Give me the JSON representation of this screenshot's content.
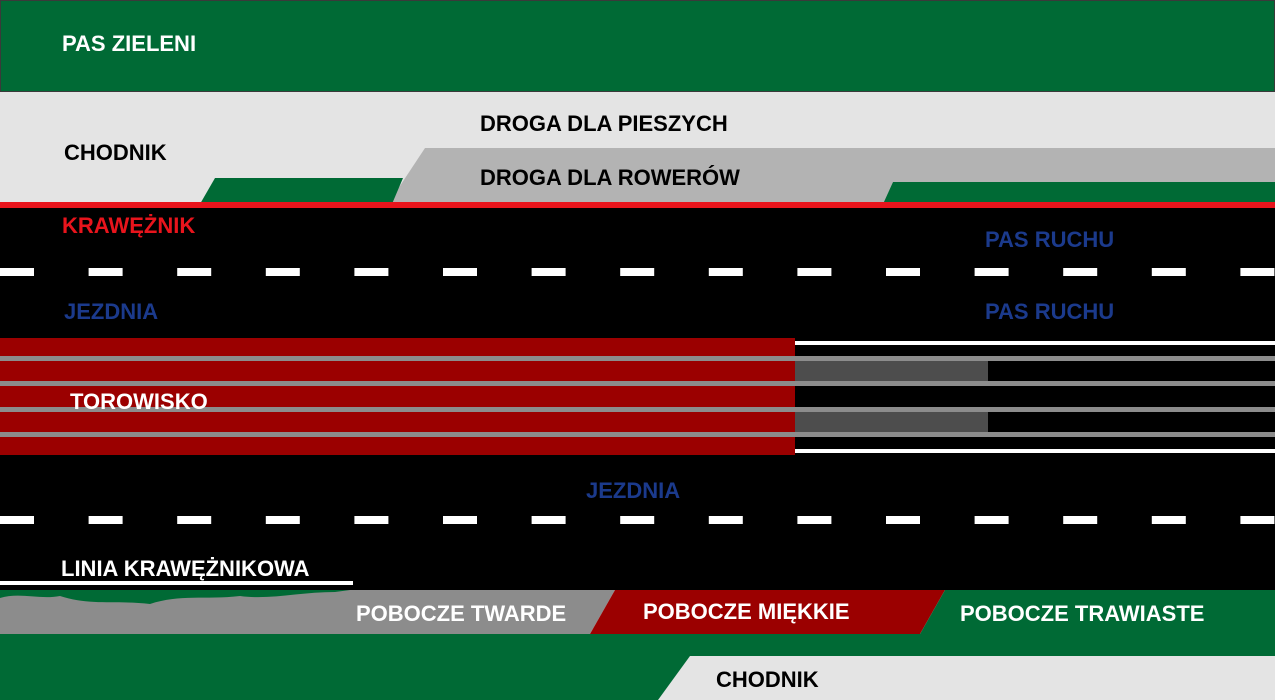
{
  "labels": {
    "green_belt": "PAS ZIELENI",
    "sidewalk_top": "CHODNIK",
    "pedestrian_path": "DROGA DLA PIESZYCH",
    "bike_path": "DROGA DLA ROWERÓW",
    "curb": "KRAWĘŻNIK",
    "lane_top": "PAS RUCHU",
    "lane_mid": "PAS RUCHU",
    "roadway_top": "JEZDNIA",
    "tram_track": "TOROWISKO",
    "roadway_bottom": "JEZDNIA",
    "curb_line": "LINIA KRAWĘŻNIKOWA",
    "hard_shoulder": "POBOCZE TWARDE",
    "soft_shoulder": "POBOCZE MIĘKKIE",
    "grass_shoulder": "POBOCZE TRAWIASTE",
    "sidewalk_bottom": "CHODNIK"
  },
  "colors": {
    "green": "#006a35",
    "light_gray": "#e4e4e4",
    "mid_gray": "#b3b3b3",
    "asphalt": "#000000",
    "curb_red": "#e8141c",
    "tram_red": "#9b0000",
    "rail_gray": "#8c8c8c",
    "dark_gray": "#4d4d4d",
    "lane_blue": "#1b3a8c"
  }
}
